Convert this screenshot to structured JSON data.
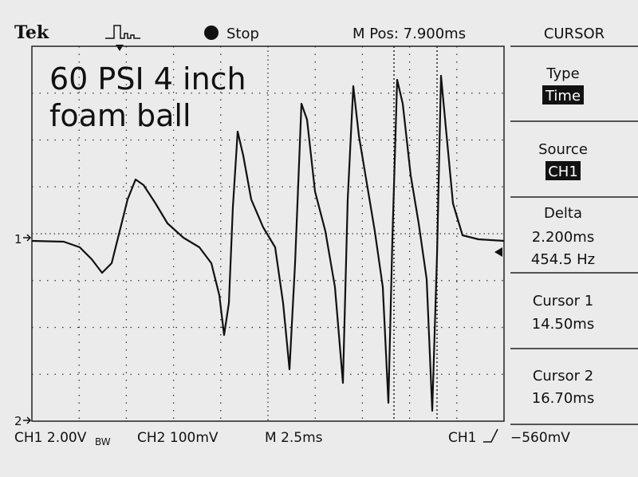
{
  "header": {
    "brand": "Tek",
    "status": "Stop",
    "position": "M Pos: 7.900ms",
    "menu_title": "CURSOR"
  },
  "annotation": {
    "line1": "60 PSI 4 inch",
    "line2": "foam ball"
  },
  "menu": {
    "items": [
      {
        "label": "Type",
        "value": "Time"
      },
      {
        "label": "Source",
        "value": "CH1"
      },
      {
        "label": "Delta",
        "values": [
          "2.200ms",
          "454.5 Hz"
        ]
      },
      {
        "label": "Cursor 1",
        "value": "14.50ms"
      },
      {
        "label": "Cursor 2",
        "value": "16.70ms"
      }
    ]
  },
  "footer": {
    "ch1": "CH1 2.00V",
    "ch1_bw": "BW",
    "ch2": "CH2 100mV",
    "timebase": "M 2.5ms",
    "trigger_source": "CH1",
    "trigger_level": "−560mV"
  },
  "markers": {
    "ch1": "1",
    "ch2": "2"
  }
}
